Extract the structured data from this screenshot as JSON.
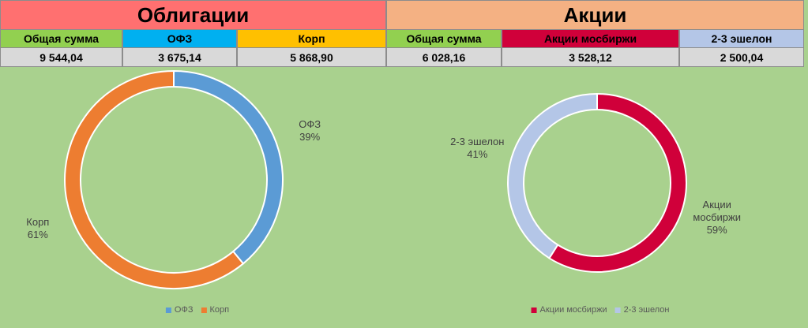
{
  "sections": [
    {
      "title": "Облигации",
      "title_color": "#ff7070",
      "headers": [
        "Общая сумма",
        "ОФЗ",
        "Корп"
      ],
      "header_colors": [
        "#92d050",
        "#00b0f0",
        "#ffc000"
      ],
      "values": [
        "9 544,04",
        "3 675,14",
        "5 868,90"
      ]
    },
    {
      "title": "Акции",
      "title_color": "#f4b183",
      "headers": [
        "Общая сумма",
        "Акции мосбиржи",
        "2-3 эшелон"
      ],
      "header_colors": [
        "#92d050",
        "#d0003a",
        "#b4c6e7"
      ],
      "values": [
        "6 028,16",
        "3 528,12",
        "2 500,04"
      ]
    }
  ],
  "chart_data": [
    {
      "type": "donut",
      "categories": [
        "ОФЗ",
        "Корп"
      ],
      "values": [
        39,
        61
      ],
      "value_labels": [
        "39%",
        "61%"
      ],
      "colors": [
        "#5b9bd5",
        "#ed7d31"
      ],
      "legend": "bottom"
    },
    {
      "type": "donut",
      "categories": [
        "Акции мосбиржи",
        "2-3 эшелон"
      ],
      "values": [
        59,
        41
      ],
      "value_labels": [
        "59%",
        "41%"
      ],
      "colors": [
        "#d0003a",
        "#b4c6e7"
      ],
      "legend": "bottom"
    }
  ]
}
